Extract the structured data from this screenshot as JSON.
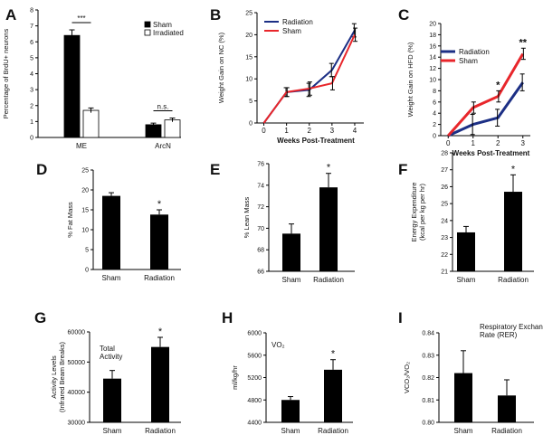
{
  "chart_data": [
    {
      "id": "A",
      "type": "bar",
      "panel_label": "A",
      "ylabel": "Percentage of BrdU+ neurons",
      "categories": [
        "ME",
        "ArcN"
      ],
      "series": [
        {
          "name": "Sham",
          "color": "#000000",
          "values": [
            6.4,
            0.8
          ],
          "errors": [
            0.35,
            0.1
          ]
        },
        {
          "name": "Irradiated",
          "color": "#ffffff",
          "values": [
            1.7,
            1.1
          ],
          "errors": [
            0.15,
            0.12
          ]
        }
      ],
      "ylim": [
        0,
        8
      ],
      "yticks": [
        0,
        1,
        2,
        3,
        4,
        5,
        6,
        7,
        8
      ],
      "annotations": [
        {
          "category": "ME",
          "text": "***"
        },
        {
          "category": "ArcN",
          "text": "n.s."
        }
      ],
      "legend_position": "top-right"
    },
    {
      "id": "B",
      "type": "line",
      "panel_label": "B",
      "xlabel": "Weeks Post-Treatment",
      "ylabel": "Weight Gain on NC (%)",
      "x": [
        0,
        1,
        2,
        3,
        4
      ],
      "series": [
        {
          "name": "Radiation",
          "color": "#1c2f85",
          "values": [
            0,
            7,
            7.5,
            12,
            21
          ],
          "errors": [
            0,
            1,
            1.5,
            1.5,
            1.5
          ]
        },
        {
          "name": "Sham",
          "color": "#e8262b",
          "values": [
            0,
            7,
            7.8,
            9,
            20
          ],
          "errors": [
            0,
            1,
            1.5,
            1.5,
            1.5
          ]
        }
      ],
      "xlim": [
        -0.3,
        4.4
      ],
      "ylim": [
        0,
        25
      ],
      "yticks": [
        0,
        5,
        10,
        15,
        20,
        25
      ],
      "xticks": [
        0,
        1,
        2,
        3,
        4
      ],
      "legend_position": "top-left"
    },
    {
      "id": "C",
      "type": "line",
      "panel_label": "C",
      "xlabel": "Weeks Post-Treatment",
      "ylabel": "Weight Gain on HFD (%)",
      "x": [
        0,
        1,
        2,
        3
      ],
      "series": [
        {
          "name": "Radiation",
          "color": "#1c2f85",
          "values": [
            0,
            2,
            3.2,
            9.5
          ],
          "errors": [
            0,
            1.8,
            1.5,
            1.5
          ]
        },
        {
          "name": "Sham",
          "color": "#e8262b",
          "values": [
            0,
            5,
            7,
            14.6
          ],
          "errors": [
            0,
            1,
            1,
            1
          ]
        }
      ],
      "xlim": [
        -0.3,
        3.3
      ],
      "ylim": [
        0,
        20
      ],
      "yticks": [
        0,
        2,
        4,
        6,
        8,
        10,
        12,
        14,
        16,
        18,
        20
      ],
      "xticks": [
        0,
        1,
        2,
        3
      ],
      "annotations": [
        {
          "x": 2,
          "text": "*"
        },
        {
          "x": 3,
          "text": "**"
        }
      ],
      "legend_position": "top-left"
    },
    {
      "id": "D",
      "type": "bar",
      "panel_label": "D",
      "ylabel": "% Fat Mass",
      "categories": [
        "Sham",
        "Radiation"
      ],
      "values": [
        18.5,
        13.8
      ],
      "errors": [
        0.8,
        1.2
      ],
      "ylim": [
        0,
        25
      ],
      "yticks": [
        0,
        5,
        10,
        15,
        20,
        25
      ],
      "annotations": [
        {
          "category": "Radiation",
          "text": "*"
        }
      ]
    },
    {
      "id": "E",
      "type": "bar",
      "panel_label": "E",
      "ylabel": "% Lean Mass",
      "categories": [
        "Sham",
        "Radiation"
      ],
      "values": [
        69.5,
        73.8
      ],
      "errors": [
        0.9,
        1.3
      ],
      "ylim": [
        66,
        76
      ],
      "yticks": [
        66,
        68,
        70,
        72,
        74,
        76
      ],
      "annotations": [
        {
          "category": "Radiation",
          "text": "*"
        }
      ]
    },
    {
      "id": "F",
      "type": "bar",
      "panel_label": "F",
      "ylabel": "Energy Expenditure (kcal per kg per hr)",
      "categories": [
        "Sham",
        "Radiation"
      ],
      "values": [
        23.3,
        25.7
      ],
      "errors": [
        0.35,
        1.0
      ],
      "ylim": [
        21,
        28
      ],
      "yticks": [
        21,
        22,
        23,
        24,
        25,
        26,
        27,
        28
      ],
      "annotations": [
        {
          "category": "Radiation",
          "text": "*"
        }
      ]
    },
    {
      "id": "G",
      "type": "bar",
      "panel_label": "G",
      "ylabel": "Activity Levels (Infrared Beam Breaks)",
      "title": "Total Activity",
      "categories": [
        "Sham",
        "Radiation"
      ],
      "values": [
        44500,
        55000
      ],
      "errors": [
        2700,
        3200
      ],
      "ylim": [
        30000,
        60000
      ],
      "yticks": [
        30000,
        40000,
        50000,
        60000
      ],
      "annotations": [
        {
          "category": "Radiation",
          "text": "*"
        }
      ]
    },
    {
      "id": "H",
      "type": "bar",
      "panel_label": "H",
      "ylabel": "ml/kg/hr",
      "title": "VO₂",
      "categories": [
        "Sham",
        "Radiation"
      ],
      "values": [
        4800,
        5340
      ],
      "errors": [
        60,
        180
      ],
      "ylim": [
        4400,
        6000
      ],
      "yticks": [
        4400,
        4800,
        5200,
        5600,
        6000
      ],
      "annotations": [
        {
          "category": "Radiation",
          "text": "*"
        }
      ]
    },
    {
      "id": "I",
      "type": "bar",
      "panel_label": "I",
      "ylabel": "VCO₂/VO₂",
      "title": "Respiratory Exchange Rate (RER)",
      "categories": [
        "Sham",
        "Radiation"
      ],
      "values": [
        0.822,
        0.812
      ],
      "errors": [
        0.01,
        0.007
      ],
      "ylim": [
        0.8,
        0.84
      ],
      "yticks": [
        0.8,
        0.81,
        0.82,
        0.83,
        0.84
      ],
      "annotations": []
    }
  ]
}
